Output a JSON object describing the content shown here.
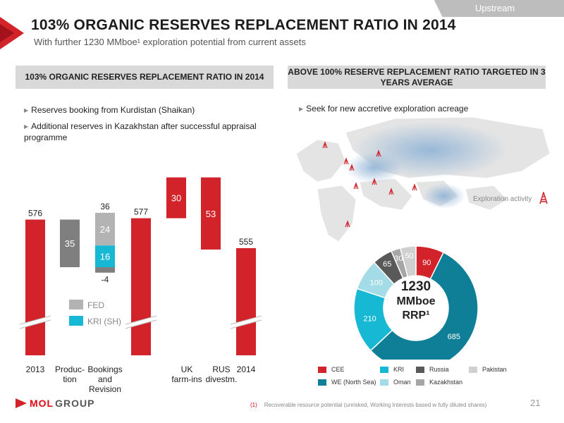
{
  "header": {
    "tab_label": "Upstream",
    "title": "103% ORGANIC RESERVES REPLACEMENT RATIO IN 2014",
    "subtitle": "With further 1230 MMboe¹ exploration potential from current assets"
  },
  "left_panel": {
    "heading": "103% ORGANIC RESERVES REPLACEMENT RATIO IN 2014",
    "bullets": [
      "Reserves booking from Kurdistan (Shaikan)",
      "Additional reserves in Kazakhstan after successful appraisal programme"
    ]
  },
  "right_panel": {
    "heading": "ABOVE 100% RESERVE REPLACEMENT RATIO TARGETED IN 3 YEARS AVERAGE",
    "bullets": [
      "Seek for new accretive exploration acreage"
    ],
    "map_legend_label": "Exploration activity"
  },
  "colors": {
    "red": "#d2232a",
    "grey_dark": "#7f7f7f",
    "grey_light": "#b3b3b3",
    "cyan": "#17b8d4",
    "teal": "#0e7f96",
    "light_cyan": "#a3dbe6",
    "dark_grey": "#595959",
    "mid_grey": "#a6a6a6",
    "pale_grey": "#d0d0d0"
  },
  "chart_data": [
    {
      "type": "bar",
      "subtype": "waterfall",
      "categories": [
        "2013",
        "Produc-\ntion",
        "Bookings\nand\nRevision",
        "UK\nfarm-ins",
        "RUS\ndivestm.",
        "2014"
      ],
      "start_value": 576,
      "steps": [
        {
          "category": "Produc-\ntion",
          "value": -35
        },
        {
          "category": "Bookings\nand\nRevision",
          "components": [
            {
              "name": "KRI (SH)",
              "value": 16
            },
            {
              "name": "FED",
              "value": 24
            },
            {
              "name": "other",
              "value": -4
            }
          ],
          "total": 36
        },
        {
          "category": "UK\nfarm-ins",
          "value": 30
        },
        {
          "category": "RUS\ndivestm.",
          "value": -53
        }
      ],
      "subtotal_after_revision": 577,
      "end_value": 555,
      "legend": [
        "FED",
        "KRI (SH)"
      ]
    },
    {
      "type": "pie",
      "subtype": "donut",
      "center_label": {
        "line1": "1230",
        "line2": "MMboe",
        "line3": "RRP¹"
      },
      "slices": [
        {
          "name": "CEE",
          "value": 90,
          "color": "#d2232a"
        },
        {
          "name": "WE (North Sea)",
          "value": 685,
          "color": "#0e7f96"
        },
        {
          "name": "KRI",
          "value": 210,
          "color": "#17b8d4"
        },
        {
          "name": "Oman",
          "value": 100,
          "color": "#a3dbe6"
        },
        {
          "name": "Russia",
          "value": 65,
          "color": "#595959"
        },
        {
          "name": "Kazakhstan",
          "value": 30,
          "color": "#a6a6a6"
        },
        {
          "name": "Pakistan",
          "value": 50,
          "color": "#d0d0d0"
        }
      ],
      "legend": [
        "CEE",
        "KRI",
        "Russia",
        "Pakistan",
        "WE (North Sea)",
        "Oman",
        "Kazakhstan"
      ]
    }
  ],
  "footer": {
    "footnote_marker": "(1)",
    "footnote": "Recoverable resource potential (unrisked, Working Interests based w fully diluted shares)",
    "page_number": "21",
    "logo_mol": "MOL",
    "logo_group": "GROUP"
  }
}
